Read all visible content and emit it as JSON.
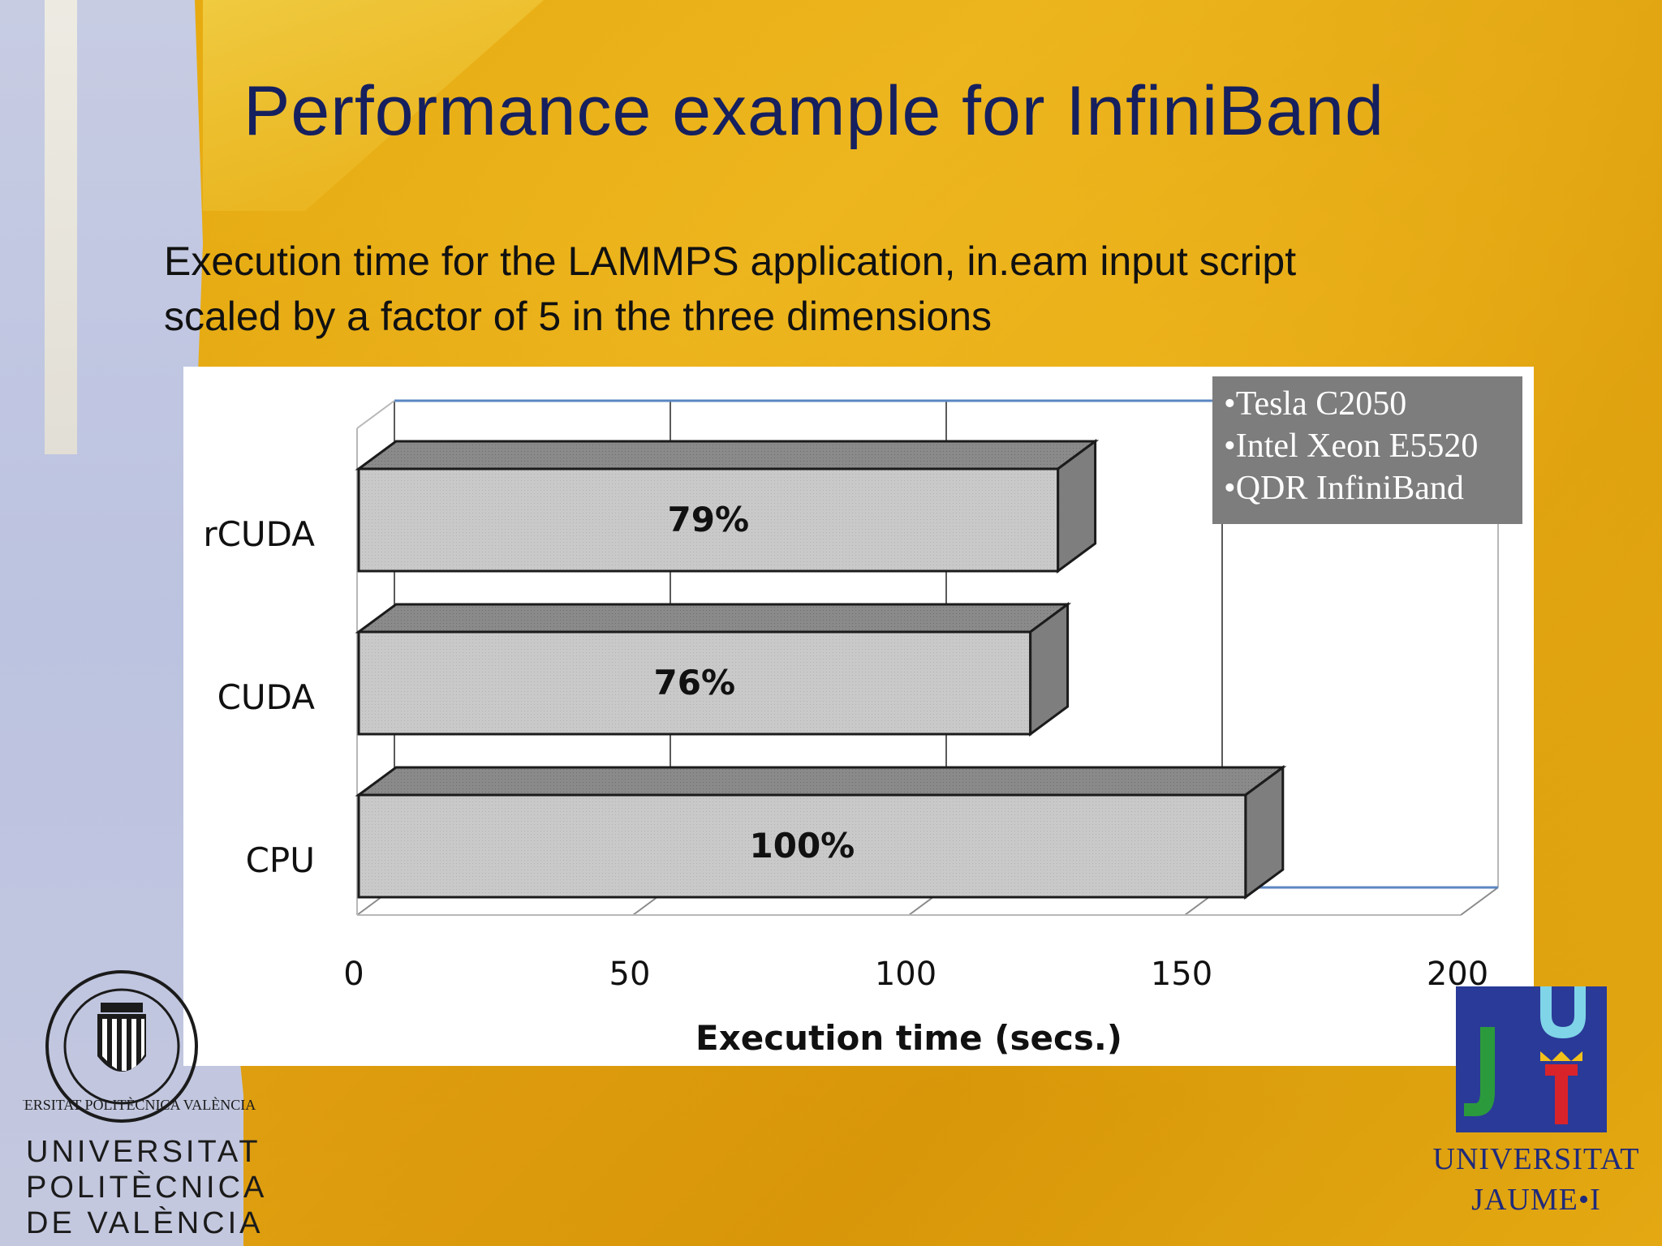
{
  "slide": {
    "title": "Performance example for InfiniBand",
    "subtitle_line1": "Execution time for the LAMMPS application, in.eam input script",
    "subtitle_line2": "scaled by a factor of 5 in the three dimensions"
  },
  "chart_data": {
    "type": "bar",
    "orientation": "horizontal",
    "style": "3d",
    "categories": [
      "rCUDA",
      "CUDA",
      "CPU"
    ],
    "values": [
      127,
      122,
      161
    ],
    "data_labels": [
      "79%",
      "76%",
      "100%"
    ],
    "xlabel": "Execution time (secs.)",
    "ylabel": "",
    "xlim": [
      0,
      200
    ],
    "xticks": [
      "0",
      "50",
      "100",
      "150",
      "200"
    ],
    "grid": true,
    "legend_placement": "top-right",
    "legend_items": [
      "Tesla C2050",
      "Intel Xeon E5520",
      "QDR InfiniBand"
    ],
    "bar_color": "#c6c6c6",
    "bar_shade_color": "#7e7e7e"
  },
  "logos": {
    "upv_line1": "UNIVERSITAT",
    "upv_line2": "POLITÈCNICA",
    "upv_line3": "DE VALÈNCIA",
    "uji_line1": "UNIVERSITAT",
    "uji_line2": "JAUME•I",
    "upv_seal_text": "UNIVERSITAT POLITÈCNICA VALÈNCIA"
  },
  "colors": {
    "title": "#16205e",
    "background": "#e6a90e",
    "grid": "#5b87c0",
    "legend_bg": "#7d7d7d"
  }
}
